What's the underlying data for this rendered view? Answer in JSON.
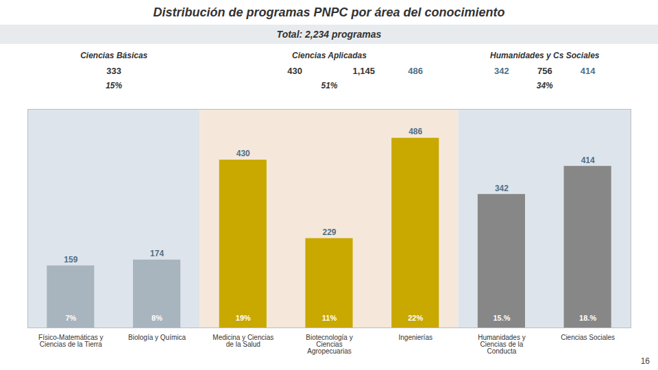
{
  "chart_data": {
    "type": "bar",
    "title": "Distribución de programas PNPC por área del conocimiento",
    "subtitle": "Total: 2,234 programas",
    "categories": [
      "Físico-Matemáticas y\nCiencias de la Tierra",
      "Biología y Química",
      "Medicina y Ciencias\nde la Salud",
      "Biotecnología y\nCiencias\nAgropecuarias",
      "Ingenierías",
      "Humanidades y\nCiencias de la\nConducta",
      "Ciencias Sociales"
    ],
    "values": [
      159,
      174,
      430,
      229,
      486,
      342,
      414
    ],
    "colors": [
      "#a8b4be",
      "#a8b4be",
      "#c9a800",
      "#c9a800",
      "#c9a800",
      "#878787",
      "#878787"
    ],
    "data_labels": true,
    "percent_labels": [
      "7%",
      "8%",
      "19%",
      "11%",
      "22%",
      "15.%",
      "18.%"
    ],
    "ylim": [
      0,
      560
    ],
    "tick_labels": "x",
    "grid": false,
    "groups": [
      {
        "name": "Ciencias Básicas",
        "members": [
          "Físico-Matemáticas y\nCiencias de la Tierra",
          "Biología y Química"
        ],
        "color": "#dde4eb",
        "totals": [
          333
        ],
        "share_label": "15%"
      },
      {
        "name": "Ciencias Aplicadas",
        "members": [
          "Medicina y Ciencias\nde la Salud",
          "Biotecnología y\nCiencias\nAgropecuarias",
          "Ingenierías"
        ],
        "color": "#f5e8da",
        "totals": [
          430,
          {
            "value": 1145,
            "label": "1,145"
          }
        ],
        "share_label": "51%"
      },
      {
        "name": "Humanidades y Cs Sociales",
        "members": [
          "Humanidades y\nCiencias de la\nConducta",
          "Ciencias Sociales"
        ],
        "color": "#dde4eb",
        "totals": [
          756
        ],
        "share_label": "34%"
      }
    ],
    "header_values": [
      {
        "category": "Ingenierías",
        "value": 486
      },
      {
        "category": "Humanidades y\nCiencias de la\nConducta",
        "value": 342
      },
      {
        "category": "Ciencias Sociales",
        "value": 414
      }
    ],
    "page_number": "16"
  }
}
